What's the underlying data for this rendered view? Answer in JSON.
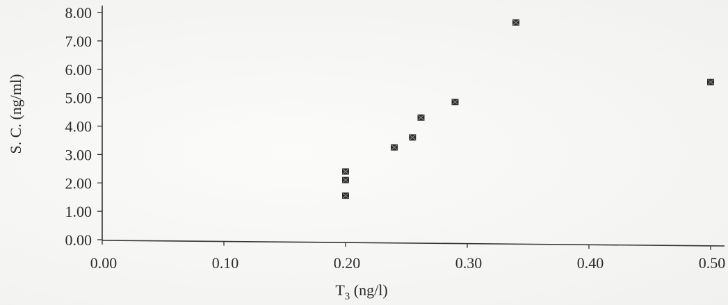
{
  "chart_data": {
    "type": "scatter",
    "title": "",
    "xlabel": "T",
    "xlabel_subscript": "3",
    "xlabel_unit": " (ng/l)",
    "ylabel": "S. C. (ng/ml)",
    "xlim": [
      0.0,
      0.5
    ],
    "ylim": [
      0.0,
      8.0
    ],
    "x_ticks": [
      "0.00",
      "0.10",
      "0.20",
      "0.30",
      "0.40",
      "0.50"
    ],
    "y_ticks": [
      "0.00",
      "1.00",
      "2.00",
      "3.00",
      "4.00",
      "5.00",
      "6.00",
      "7.00",
      "8.00"
    ],
    "grid": false,
    "legend": "none",
    "marker_color": "#2b2b2b",
    "series": [
      {
        "points": [
          {
            "x": 0.2,
            "y": 1.55
          },
          {
            "x": 0.2,
            "y": 2.1
          },
          {
            "x": 0.2,
            "y": 2.4
          },
          {
            "x": 0.24,
            "y": 3.25
          },
          {
            "x": 0.255,
            "y": 3.6
          },
          {
            "x": 0.262,
            "y": 4.3
          },
          {
            "x": 0.29,
            "y": 4.85
          },
          {
            "x": 0.34,
            "y": 7.65
          },
          {
            "x": 0.5,
            "y": 5.55
          }
        ]
      }
    ]
  }
}
